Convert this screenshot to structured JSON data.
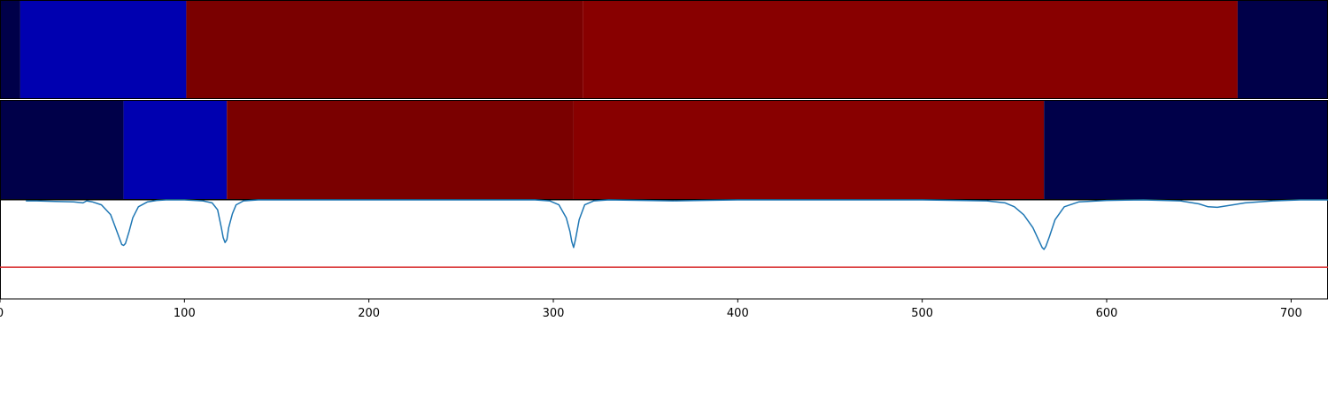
{
  "chart_data": [
    {
      "type": "heatmap",
      "description_row": "segment band 1",
      "segments": [
        {
          "start": 0,
          "end": 11,
          "color": "#000049"
        },
        {
          "start": 11,
          "end": 101,
          "color": "#0000b0"
        },
        {
          "start": 101,
          "end": 316,
          "color": "#7a0000"
        },
        {
          "start": 316,
          "end": 671,
          "color": "#880000"
        },
        {
          "start": 671,
          "end": 720,
          "color": "#000049"
        }
      ]
    },
    {
      "type": "heatmap",
      "description_row": "segment band 2",
      "segments": [
        {
          "start": 0,
          "end": 67,
          "color": "#000049"
        },
        {
          "start": 67,
          "end": 123,
          "color": "#0000b0"
        },
        {
          "start": 123,
          "end": 311,
          "color": "#7a0000"
        },
        {
          "start": 311,
          "end": 566,
          "color": "#880000"
        },
        {
          "start": 566,
          "end": 720,
          "color": "#000049"
        }
      ]
    },
    {
      "type": "line",
      "xlim": [
        0,
        720
      ],
      "ylim": [
        0,
        1
      ],
      "xticks": [
        0,
        100,
        200,
        300,
        400,
        500,
        600,
        700
      ],
      "threshold": 0.32,
      "threshold_color": "#d62728",
      "line_color": "#1f77b4",
      "series": [
        {
          "x": [
            14,
            20,
            30,
            40,
            45,
            47,
            50,
            55,
            60,
            63,
            65,
            66,
            67,
            68,
            70,
            72,
            75,
            80,
            85,
            90,
            100,
            110,
            115,
            118,
            120,
            121,
            122,
            123,
            124,
            126,
            128,
            132,
            140,
            160,
            200,
            250,
            290,
            298,
            303,
            307,
            309,
            310,
            311,
            312,
            314,
            317,
            322,
            330,
            350,
            365,
            380,
            400,
            450,
            500,
            520,
            535,
            545,
            550,
            555,
            560,
            563,
            565,
            566,
            567,
            569,
            572,
            577,
            585,
            600,
            620,
            640,
            650,
            655,
            660,
            665,
            675,
            690,
            705,
            720
          ],
          "y": [
            0.99,
            0.99,
            0.985,
            0.98,
            0.97,
            0.99,
            0.98,
            0.95,
            0.85,
            0.7,
            0.6,
            0.55,
            0.54,
            0.56,
            0.68,
            0.82,
            0.93,
            0.98,
            0.995,
            1.0,
            1.0,
            0.99,
            0.97,
            0.9,
            0.72,
            0.62,
            0.57,
            0.6,
            0.72,
            0.86,
            0.95,
            0.99,
            1.0,
            1.0,
            1.0,
            1.0,
            1.0,
            0.99,
            0.95,
            0.82,
            0.68,
            0.58,
            0.52,
            0.6,
            0.8,
            0.95,
            0.99,
            1.0,
            0.995,
            0.99,
            0.995,
            1.0,
            1.0,
            1.0,
            0.995,
            0.99,
            0.97,
            0.93,
            0.85,
            0.72,
            0.6,
            0.52,
            0.5,
            0.53,
            0.63,
            0.8,
            0.93,
            0.98,
            0.995,
            1.0,
            0.99,
            0.96,
            0.93,
            0.925,
            0.94,
            0.97,
            0.99,
            1.0,
            1.0
          ]
        }
      ]
    }
  ]
}
